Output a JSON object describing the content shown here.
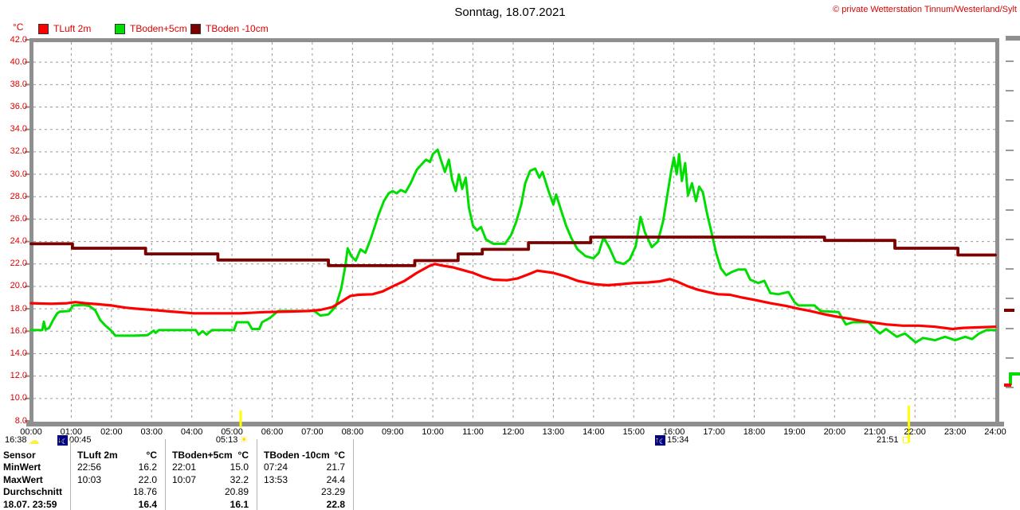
{
  "header": {
    "title": "Sonntag, 18.07.2021",
    "copyright": "© private Wetterstation Tinnum/Westerland/Sylt"
  },
  "chart_data": {
    "type": "line",
    "title": "Sonntag, 18.07.2021",
    "ylabel": "°C",
    "ylim": [
      8,
      42
    ],
    "y_step": 2,
    "xlim_hours": [
      0,
      24
    ],
    "grid": true,
    "legend_position": "top-left",
    "x_tick_labels": [
      "00:00",
      "01:00",
      "02:00",
      "03:00",
      "04:00",
      "05:00",
      "06:00",
      "07:00",
      "08:00",
      "09:00",
      "10:00",
      "11:00",
      "12:00",
      "13:00",
      "14:00",
      "15:00",
      "16:00",
      "17:00",
      "18:00",
      "19:00",
      "20:00",
      "21:00",
      "22:00",
      "23:00",
      "24:00"
    ],
    "series": [
      {
        "name": "TBoden+5cm",
        "color": "#00dd00",
        "width": 3,
        "step": false,
        "points": [
          [
            0,
            16.1
          ],
          [
            0.28,
            16.1
          ],
          [
            0.32,
            16.85
          ],
          [
            0.36,
            16.15
          ],
          [
            0.45,
            16.3
          ],
          [
            0.55,
            17.0
          ],
          [
            0.65,
            17.6
          ],
          [
            0.72,
            17.75
          ],
          [
            0.95,
            17.8
          ],
          [
            1.05,
            18.3
          ],
          [
            1.3,
            18.35
          ],
          [
            1.45,
            18.25
          ],
          [
            1.6,
            17.85
          ],
          [
            1.72,
            17.0
          ],
          [
            1.85,
            16.5
          ],
          [
            1.98,
            16.1
          ],
          [
            2.1,
            15.6
          ],
          [
            2.55,
            15.6
          ],
          [
            2.9,
            15.65
          ],
          [
            3.05,
            16.05
          ],
          [
            3.1,
            15.85
          ],
          [
            3.18,
            16.1
          ],
          [
            3.6,
            16.1
          ],
          [
            4.1,
            16.1
          ],
          [
            4.17,
            15.7
          ],
          [
            4.27,
            16.0
          ],
          [
            4.37,
            15.7
          ],
          [
            4.5,
            16.1
          ],
          [
            5.05,
            16.1
          ],
          [
            5.12,
            16.8
          ],
          [
            5.4,
            16.8
          ],
          [
            5.5,
            16.2
          ],
          [
            5.68,
            16.2
          ],
          [
            5.75,
            16.8
          ],
          [
            5.95,
            17.2
          ],
          [
            6.15,
            17.8
          ],
          [
            6.6,
            17.8
          ],
          [
            7.05,
            17.8
          ],
          [
            7.2,
            17.4
          ],
          [
            7.4,
            17.5
          ],
          [
            7.58,
            18.2
          ],
          [
            7.72,
            19.8
          ],
          [
            7.82,
            21.8
          ],
          [
            7.88,
            23.4
          ],
          [
            7.97,
            22.7
          ],
          [
            8.08,
            22.3
          ],
          [
            8.2,
            23.3
          ],
          [
            8.32,
            23.0
          ],
          [
            8.45,
            24.2
          ],
          [
            8.55,
            25.3
          ],
          [
            8.65,
            26.4
          ],
          [
            8.78,
            27.6
          ],
          [
            8.9,
            28.3
          ],
          [
            9.0,
            28.5
          ],
          [
            9.1,
            28.3
          ],
          [
            9.2,
            28.6
          ],
          [
            9.32,
            28.4
          ],
          [
            9.45,
            29.2
          ],
          [
            9.6,
            30.4
          ],
          [
            9.7,
            30.8
          ],
          [
            9.83,
            31.3
          ],
          [
            9.93,
            31.1
          ],
          [
            10.0,
            31.8
          ],
          [
            10.12,
            32.2
          ],
          [
            10.2,
            31.3
          ],
          [
            10.3,
            30.2
          ],
          [
            10.4,
            31.3
          ],
          [
            10.48,
            29.5
          ],
          [
            10.57,
            28.5
          ],
          [
            10.65,
            30.0
          ],
          [
            10.73,
            28.7
          ],
          [
            10.82,
            29.7
          ],
          [
            10.9,
            27.0
          ],
          [
            11.0,
            25.4
          ],
          [
            11.1,
            25.0
          ],
          [
            11.2,
            25.3
          ],
          [
            11.32,
            24.2
          ],
          [
            11.5,
            23.8
          ],
          [
            11.8,
            23.8
          ],
          [
            11.95,
            24.6
          ],
          [
            12.08,
            25.8
          ],
          [
            12.2,
            27.3
          ],
          [
            12.3,
            29.2
          ],
          [
            12.42,
            30.3
          ],
          [
            12.55,
            30.5
          ],
          [
            12.65,
            29.7
          ],
          [
            12.73,
            30.2
          ],
          [
            12.88,
            28.5
          ],
          [
            13.0,
            27.3
          ],
          [
            13.07,
            28.2
          ],
          [
            13.2,
            26.7
          ],
          [
            13.32,
            25.4
          ],
          [
            13.45,
            24.3
          ],
          [
            13.6,
            23.3
          ],
          [
            13.8,
            22.7
          ],
          [
            14.0,
            22.5
          ],
          [
            14.13,
            23.0
          ],
          [
            14.25,
            24.4
          ],
          [
            14.4,
            23.4
          ],
          [
            14.55,
            22.2
          ],
          [
            14.75,
            22.0
          ],
          [
            14.9,
            22.4
          ],
          [
            15.05,
            23.6
          ],
          [
            15.17,
            26.2
          ],
          [
            15.28,
            24.8
          ],
          [
            15.45,
            23.5
          ],
          [
            15.6,
            24.0
          ],
          [
            15.73,
            25.8
          ],
          [
            15.83,
            28.0
          ],
          [
            15.93,
            30.2
          ],
          [
            16.0,
            31.5
          ],
          [
            16.07,
            30.0
          ],
          [
            16.13,
            31.8
          ],
          [
            16.2,
            29.4
          ],
          [
            16.28,
            31.0
          ],
          [
            16.35,
            28.1
          ],
          [
            16.45,
            29.2
          ],
          [
            16.55,
            27.6
          ],
          [
            16.63,
            28.9
          ],
          [
            16.72,
            28.4
          ],
          [
            16.82,
            26.6
          ],
          [
            16.95,
            24.6
          ],
          [
            17.05,
            23.0
          ],
          [
            17.17,
            21.6
          ],
          [
            17.3,
            21.0
          ],
          [
            17.45,
            21.3
          ],
          [
            17.6,
            21.5
          ],
          [
            17.78,
            21.5
          ],
          [
            17.9,
            20.6
          ],
          [
            18.1,
            20.3
          ],
          [
            18.25,
            20.5
          ],
          [
            18.4,
            19.4
          ],
          [
            18.6,
            19.3
          ],
          [
            18.85,
            19.5
          ],
          [
            19.0,
            18.6
          ],
          [
            19.1,
            18.3
          ],
          [
            19.5,
            18.3
          ],
          [
            19.65,
            17.8
          ],
          [
            20.1,
            17.7
          ],
          [
            20.28,
            16.6
          ],
          [
            20.45,
            16.8
          ],
          [
            20.85,
            16.8
          ],
          [
            21.0,
            16.2
          ],
          [
            21.13,
            15.8
          ],
          [
            21.28,
            16.2
          ],
          [
            21.55,
            15.5
          ],
          [
            21.75,
            15.8
          ],
          [
            22.02,
            15.0
          ],
          [
            22.2,
            15.4
          ],
          [
            22.5,
            15.2
          ],
          [
            22.75,
            15.5
          ],
          [
            23.0,
            15.2
          ],
          [
            23.25,
            15.5
          ],
          [
            23.42,
            15.3
          ],
          [
            23.6,
            15.8
          ],
          [
            23.78,
            16.1
          ],
          [
            24,
            16.1
          ]
        ]
      },
      {
        "name": "TLuft 2m",
        "color": "#ff0000",
        "width": 3.2,
        "step": false,
        "points": [
          [
            0,
            18.5
          ],
          [
            0.5,
            18.45
          ],
          [
            0.9,
            18.5
          ],
          [
            1.1,
            18.6
          ],
          [
            1.35,
            18.5
          ],
          [
            1.7,
            18.4
          ],
          [
            2.0,
            18.3
          ],
          [
            2.35,
            18.1
          ],
          [
            2.65,
            18.0
          ],
          [
            3.0,
            17.9
          ],
          [
            3.5,
            17.75
          ],
          [
            4.05,
            17.6
          ],
          [
            4.6,
            17.6
          ],
          [
            5.2,
            17.6
          ],
          [
            5.8,
            17.7
          ],
          [
            6.4,
            17.75
          ],
          [
            6.9,
            17.8
          ],
          [
            7.2,
            17.9
          ],
          [
            7.5,
            18.15
          ],
          [
            7.75,
            18.7
          ],
          [
            7.95,
            19.15
          ],
          [
            8.15,
            19.25
          ],
          [
            8.5,
            19.3
          ],
          [
            8.75,
            19.55
          ],
          [
            9.0,
            20.0
          ],
          [
            9.3,
            20.5
          ],
          [
            9.6,
            21.2
          ],
          [
            9.9,
            21.8
          ],
          [
            10.05,
            22.0
          ],
          [
            10.25,
            21.85
          ],
          [
            10.5,
            21.7
          ],
          [
            10.8,
            21.4
          ],
          [
            11.0,
            21.2
          ],
          [
            11.25,
            20.85
          ],
          [
            11.5,
            20.6
          ],
          [
            11.85,
            20.55
          ],
          [
            12.1,
            20.7
          ],
          [
            12.4,
            21.1
          ],
          [
            12.6,
            21.4
          ],
          [
            12.8,
            21.3
          ],
          [
            13.0,
            21.2
          ],
          [
            13.3,
            20.9
          ],
          [
            13.6,
            20.5
          ],
          [
            14.0,
            20.2
          ],
          [
            14.35,
            20.1
          ],
          [
            14.7,
            20.2
          ],
          [
            15.0,
            20.3
          ],
          [
            15.35,
            20.35
          ],
          [
            15.65,
            20.45
          ],
          [
            15.9,
            20.65
          ],
          [
            16.1,
            20.4
          ],
          [
            16.35,
            20.0
          ],
          [
            16.6,
            19.7
          ],
          [
            16.9,
            19.45
          ],
          [
            17.1,
            19.3
          ],
          [
            17.4,
            19.25
          ],
          [
            17.7,
            19.0
          ],
          [
            18.0,
            18.8
          ],
          [
            18.4,
            18.5
          ],
          [
            18.8,
            18.25
          ],
          [
            19.1,
            18.0
          ],
          [
            19.4,
            17.8
          ],
          [
            19.7,
            17.55
          ],
          [
            20.05,
            17.3
          ],
          [
            20.4,
            17.1
          ],
          [
            20.7,
            16.9
          ],
          [
            21.0,
            16.75
          ],
          [
            21.3,
            16.6
          ],
          [
            21.7,
            16.5
          ],
          [
            22.1,
            16.5
          ],
          [
            22.5,
            16.4
          ],
          [
            22.93,
            16.2
          ],
          [
            23.2,
            16.3
          ],
          [
            23.6,
            16.35
          ],
          [
            24,
            16.4
          ]
        ]
      },
      {
        "name": "TBoden -10cm",
        "color": "#7b0000",
        "width": 3.8,
        "step": true,
        "points": [
          [
            0,
            23.8
          ],
          [
            1.03,
            23.4
          ],
          [
            2.85,
            22.9
          ],
          [
            4.65,
            22.35
          ],
          [
            7.4,
            21.85
          ],
          [
            9.55,
            22.3
          ],
          [
            10.63,
            22.9
          ],
          [
            11.23,
            23.3
          ],
          [
            12.38,
            23.9
          ],
          [
            13.93,
            24.4
          ],
          [
            19.75,
            24.1
          ],
          [
            21.5,
            23.4
          ],
          [
            23.07,
            22.8
          ],
          [
            24,
            22.8
          ]
        ]
      }
    ],
    "legend_order": [
      "TLuft 2m",
      "TBoden+5cm",
      "TBoden -10cm"
    ]
  },
  "annotations": {
    "cloud_time": "16:38",
    "moonset_time": "00:45",
    "sunrise_time": "05:13",
    "moonrise_time": "15:34",
    "sunset_time": "21:51"
  },
  "summary_table": {
    "col_headers": [
      {
        "label": "Sensor"
      },
      {
        "label": "TLuft 2m",
        "unit": "°C"
      },
      {
        "label": "TBoden+5cm",
        "unit": "°C"
      },
      {
        "label": "TBoden -10cm",
        "unit": "°C"
      }
    ],
    "rows": [
      {
        "label": "MinWert",
        "cells": [
          {
            "time": "22:56",
            "value": "16.2"
          },
          {
            "time": "22:01",
            "value": "15.0"
          },
          {
            "time": "07:24",
            "value": "21.7"
          }
        ]
      },
      {
        "label": "MaxWert",
        "cells": [
          {
            "time": "10:03",
            "value": "22.0"
          },
          {
            "time": "10:07",
            "value": "32.2"
          },
          {
            "time": "13:53",
            "value": "24.4"
          }
        ]
      },
      {
        "label": "Durchschnitt",
        "cells": [
          {
            "time": "",
            "value": "18.76"
          },
          {
            "time": "",
            "value": "20.89"
          },
          {
            "time": "",
            "value": "23.29"
          }
        ]
      },
      {
        "label": "18.07. 23:59",
        "cells": [
          {
            "time": "",
            "value": "16.4"
          },
          {
            "time": "",
            "value": "16.1"
          },
          {
            "time": "",
            "value": "22.8"
          }
        ]
      }
    ]
  },
  "colors": {
    "axis_label": "#dd0000",
    "grid": "#9a9a9a",
    "frame": "#8f8f8f",
    "event_line": "#ffff00"
  }
}
